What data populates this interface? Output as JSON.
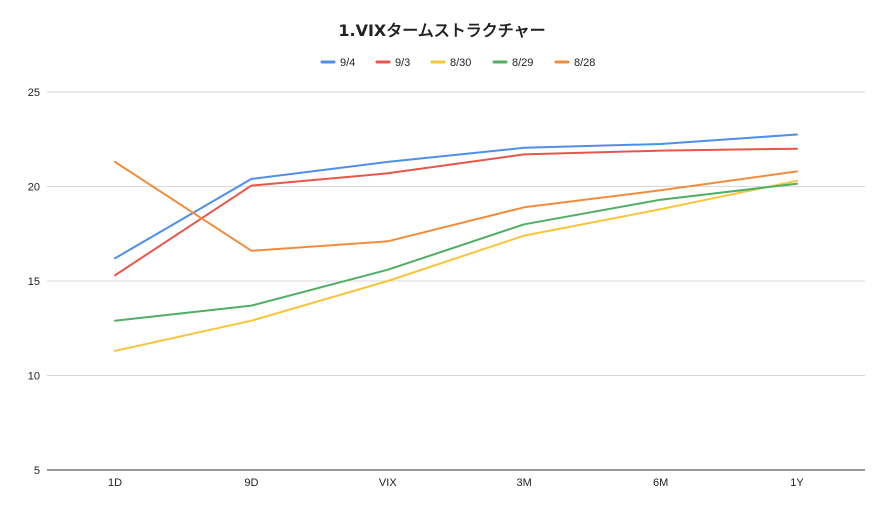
{
  "chart_data": {
    "type": "line",
    "title": "1.VIXタームストラクチャー",
    "xlabel": "",
    "ylabel": "",
    "categories": [
      "1D",
      "9D",
      "VIX",
      "3M",
      "6M",
      "1Y"
    ],
    "ylim": [
      5,
      25
    ],
    "yticks": [
      5,
      10,
      15,
      20,
      25
    ],
    "grid": true,
    "legend": "top-center",
    "series": [
      {
        "name": "9/4",
        "color": "#4f8fe8",
        "values": [
          16.2,
          20.4,
          21.3,
          22.05,
          22.25,
          22.75
        ]
      },
      {
        "name": "9/3",
        "color": "#e8564a",
        "values": [
          15.3,
          20.05,
          20.7,
          21.7,
          21.9,
          22.0
        ]
      },
      {
        "name": "8/30",
        "color": "#f8c43a",
        "values": [
          11.3,
          12.9,
          15.0,
          17.4,
          18.8,
          20.3
        ]
      },
      {
        "name": "8/29",
        "color": "#4faf62",
        "values": [
          12.9,
          13.7,
          15.6,
          18.0,
          19.3,
          20.15
        ]
      },
      {
        "name": "8/28",
        "color": "#f28c3d",
        "values": [
          21.3,
          16.6,
          17.1,
          18.9,
          19.8,
          20.8
        ]
      }
    ]
  }
}
